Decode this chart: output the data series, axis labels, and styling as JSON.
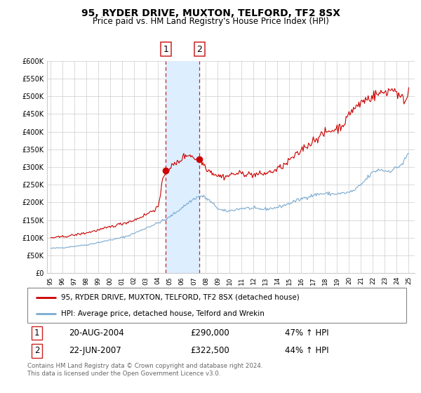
{
  "title": "95, RYDER DRIVE, MUXTON, TELFORD, TF2 8SX",
  "subtitle": "Price paid vs. HM Land Registry's House Price Index (HPI)",
  "xlim_start": 1994.7,
  "xlim_end": 2025.5,
  "ylim_min": 0,
  "ylim_max": 600000,
  "yticks": [
    0,
    50000,
    100000,
    150000,
    200000,
    250000,
    300000,
    350000,
    400000,
    450000,
    500000,
    550000,
    600000
  ],
  "ytick_labels": [
    "£0",
    "£50K",
    "£100K",
    "£150K",
    "£200K",
    "£250K",
    "£300K",
    "£350K",
    "£400K",
    "£450K",
    "£500K",
    "£550K",
    "£600K"
  ],
  "xtick_years": [
    1995,
    1996,
    1997,
    1998,
    1999,
    2000,
    2001,
    2002,
    2003,
    2004,
    2005,
    2006,
    2007,
    2008,
    2009,
    2010,
    2011,
    2012,
    2013,
    2014,
    2015,
    2016,
    2017,
    2018,
    2019,
    2020,
    2021,
    2022,
    2023,
    2024,
    2025
  ],
  "xtick_labels": [
    "95",
    "96",
    "97",
    "98",
    "99",
    "00",
    "01",
    "02",
    "03",
    "04",
    "05",
    "06",
    "07",
    "08",
    "09",
    "10",
    "11",
    "12",
    "13",
    "14",
    "15",
    "16",
    "17",
    "18",
    "19",
    "20",
    "21",
    "22",
    "23",
    "24",
    "25"
  ],
  "transaction1_x": 2004.64,
  "transaction1_y": 290000,
  "transaction2_x": 2007.47,
  "transaction2_y": 322500,
  "transaction1_date": "20-AUG-2004",
  "transaction1_price": "£290,000",
  "transaction1_hpi": "47% ↑ HPI",
  "transaction2_date": "22-JUN-2007",
  "transaction2_price": "£322,500",
  "transaction2_hpi": "44% ↑ HPI",
  "shade_color": "#ddeeff",
  "dashed_line_color": "#cc2222",
  "property_line_color": "#cc0000",
  "hpi_line_color": "#7aaad0",
  "legend_label1": "95, RYDER DRIVE, MUXTON, TELFORD, TF2 8SX (detached house)",
  "legend_label2": "HPI: Average price, detached house, Telford and Wrekin",
  "footnote": "Contains HM Land Registry data © Crown copyright and database right 2024.\nThis data is licensed under the Open Government Licence v3.0."
}
